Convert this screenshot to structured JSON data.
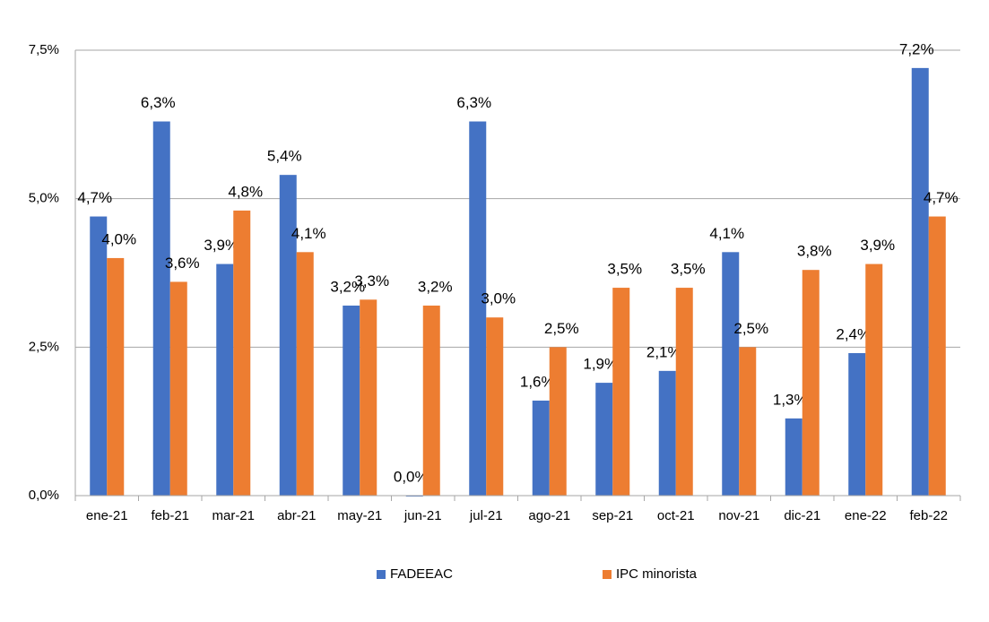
{
  "chart_data": {
    "type": "bar",
    "categories": [
      "ene-21",
      "feb-21",
      "mar-21",
      "abr-21",
      "may-21",
      "jun-21",
      "jul-21",
      "ago-21",
      "sep-21",
      "oct-21",
      "nov-21",
      "dic-21",
      "ene-22",
      "feb-22"
    ],
    "series": [
      {
        "name": "FADEEAC",
        "color": "#4472c4",
        "values": [
          4.7,
          6.3,
          3.9,
          5.4,
          3.2,
          0.0,
          6.3,
          1.6,
          1.9,
          2.1,
          4.1,
          1.3,
          2.4,
          7.2
        ],
        "value_labels": [
          "4,7%",
          "6,3%",
          "3,9%",
          "5,4%",
          "3,2%",
          "0,0%",
          "6,3%",
          "1,6%",
          "1,9%",
          "2,1%",
          "4,1%",
          "1,3%",
          "2,4%",
          "7,2%"
        ]
      },
      {
        "name": "IPC minorista",
        "color": "#ed7d31",
        "values": [
          4.0,
          3.6,
          4.8,
          4.1,
          3.3,
          3.2,
          3.0,
          2.5,
          3.5,
          3.5,
          2.5,
          3.8,
          3.9,
          4.7
        ],
        "value_labels": [
          "4,0%",
          "3,6%",
          "4,8%",
          "4,1%",
          "3,3%",
          "3,2%",
          "3,0%",
          "2,5%",
          "3,5%",
          "3,5%",
          "2,5%",
          "3,8%",
          "3,9%",
          "4,7%"
        ]
      }
    ],
    "ylim": [
      0,
      7.5
    ],
    "yticks": [
      {
        "value": 0,
        "label": "0,0%"
      },
      {
        "value": 2.5,
        "label": "2,5%"
      },
      {
        "value": 5,
        "label": "5,0%"
      },
      {
        "value": 7.5,
        "label": "7,5%"
      }
    ],
    "grid": true,
    "legend": "bottom"
  }
}
